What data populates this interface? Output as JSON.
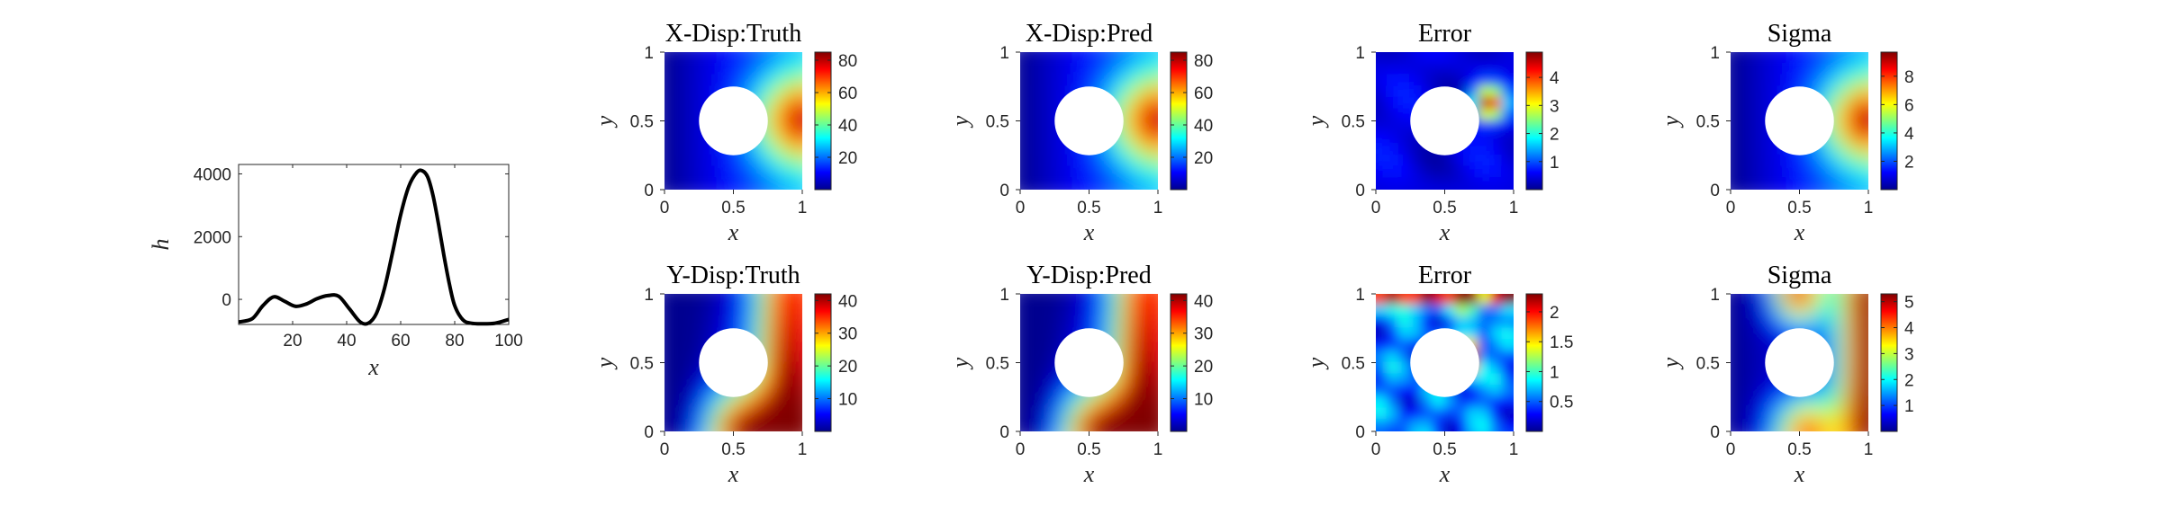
{
  "chart_data": [
    {
      "type": "line",
      "xlabel": "x",
      "ylabel": "h",
      "xlim": [
        0,
        100
      ],
      "ylim": [
        -800,
        4300
      ],
      "xticks": [
        "20",
        "40",
        "60",
        "80",
        "100"
      ],
      "yticks": [
        "0",
        "2000",
        "4000"
      ],
      "series": [
        {
          "color": "#000000",
          "x": [
            0,
            5,
            9,
            13,
            17,
            21,
            25,
            29,
            33,
            37,
            41,
            45,
            48,
            51,
            54,
            57,
            60,
            63,
            66,
            68,
            70,
            72,
            74,
            76,
            78,
            80,
            83,
            86,
            90,
            95,
            100
          ],
          "y": [
            -720,
            -620,
            -200,
            80,
            -60,
            -220,
            -150,
            20,
            120,
            100,
            -300,
            -720,
            -760,
            -450,
            350,
            1500,
            2700,
            3600,
            4050,
            4100,
            3900,
            3300,
            2400,
            1400,
            500,
            -200,
            -650,
            -760,
            -780,
            -760,
            -640
          ]
        }
      ]
    },
    {
      "type": "heatmap",
      "title": "X-Disp:Truth",
      "xlabel": "x",
      "ylabel": "y",
      "xlim": [
        0,
        1
      ],
      "ylim": [
        0,
        1
      ],
      "xticks": [
        "0",
        "0.5",
        "1"
      ],
      "yticks": [
        "0",
        "0.5",
        "1"
      ],
      "colormap": "jet",
      "clim": [
        0,
        85
      ],
      "colorbar_ticks": [
        "20",
        "40",
        "60",
        "80"
      ],
      "hole": {
        "center": [
          0.5,
          0.5
        ],
        "radius": 0.25
      }
    },
    {
      "type": "heatmap",
      "title": "X-Disp:Pred",
      "xlabel": "x",
      "ylabel": "y",
      "xlim": [
        0,
        1
      ],
      "ylim": [
        0,
        1
      ],
      "xticks": [
        "0",
        "0.5",
        "1"
      ],
      "yticks": [
        "0",
        "0.5",
        "1"
      ],
      "colormap": "jet",
      "clim": [
        0,
        85
      ],
      "colorbar_ticks": [
        "20",
        "40",
        "60",
        "80"
      ],
      "hole": {
        "center": [
          0.5,
          0.5
        ],
        "radius": 0.25
      }
    },
    {
      "type": "heatmap",
      "title": "Error",
      "xlabel": "x",
      "ylabel": "y",
      "xlim": [
        0,
        1
      ],
      "ylim": [
        0,
        1
      ],
      "xticks": [
        "0",
        "0.5",
        "1"
      ],
      "yticks": [
        "0",
        "0.5",
        "1"
      ],
      "colormap": "jet",
      "clim": [
        0,
        4.9
      ],
      "colorbar_ticks": [
        "1",
        "2",
        "3",
        "4"
      ],
      "hole": {
        "center": [
          0.5,
          0.5
        ],
        "radius": 0.25
      }
    },
    {
      "type": "heatmap",
      "title": "Sigma",
      "xlabel": "x",
      "ylabel": "y",
      "xlim": [
        0,
        1
      ],
      "ylim": [
        0,
        1
      ],
      "xticks": [
        "0",
        "0.5",
        "1"
      ],
      "yticks": [
        "0",
        "0.5",
        "1"
      ],
      "colormap": "jet",
      "clim": [
        0,
        9.7
      ],
      "colorbar_ticks": [
        "2",
        "4",
        "6",
        "8"
      ],
      "hole": {
        "center": [
          0.5,
          0.5
        ],
        "radius": 0.25
      }
    },
    {
      "type": "heatmap",
      "title": "Y-Disp:Truth",
      "xlabel": "x",
      "ylabel": "y",
      "xlim": [
        0,
        1
      ],
      "ylim": [
        0,
        1
      ],
      "xticks": [
        "0",
        "0.5",
        "1"
      ],
      "yticks": [
        "0",
        "0.5",
        "1"
      ],
      "colormap": "jet",
      "clim": [
        0,
        42
      ],
      "colorbar_ticks": [
        "10",
        "20",
        "30",
        "40"
      ],
      "hole": {
        "center": [
          0.5,
          0.5
        ],
        "radius": 0.25
      }
    },
    {
      "type": "heatmap",
      "title": "Y-Disp:Pred",
      "xlabel": "x",
      "ylabel": "y",
      "xlim": [
        0,
        1
      ],
      "ylim": [
        0,
        1
      ],
      "xticks": [
        "0",
        "0.5",
        "1"
      ],
      "yticks": [
        "0",
        "0.5",
        "1"
      ],
      "colormap": "jet",
      "clim": [
        0,
        42
      ],
      "colorbar_ticks": [
        "10",
        "20",
        "30",
        "40"
      ],
      "hole": {
        "center": [
          0.5,
          0.5
        ],
        "radius": 0.25
      }
    },
    {
      "type": "heatmap",
      "title": "Error",
      "xlabel": "x",
      "ylabel": "y",
      "xlim": [
        0,
        1
      ],
      "ylim": [
        0,
        1
      ],
      "xticks": [
        "0",
        "0.5",
        "1"
      ],
      "yticks": [
        "0",
        "0.5",
        "1"
      ],
      "colormap": "jet",
      "clim": [
        0,
        2.3
      ],
      "colorbar_ticks": [
        "0.5",
        "1",
        "1.5",
        "2"
      ],
      "hole": {
        "center": [
          0.5,
          0.5
        ],
        "radius": 0.25
      }
    },
    {
      "type": "heatmap",
      "title": "Sigma",
      "xlabel": "x",
      "ylabel": "y",
      "xlim": [
        0,
        1
      ],
      "ylim": [
        0,
        1
      ],
      "xticks": [
        "0",
        "0.5",
        "1"
      ],
      "yticks": [
        "0",
        "0.5",
        "1"
      ],
      "colormap": "jet",
      "clim": [
        0,
        5.3
      ],
      "colorbar_ticks": [
        "1",
        "2",
        "3",
        "4",
        "5"
      ],
      "hole": {
        "center": [
          0.5,
          0.5
        ],
        "radius": 0.25
      }
    }
  ]
}
